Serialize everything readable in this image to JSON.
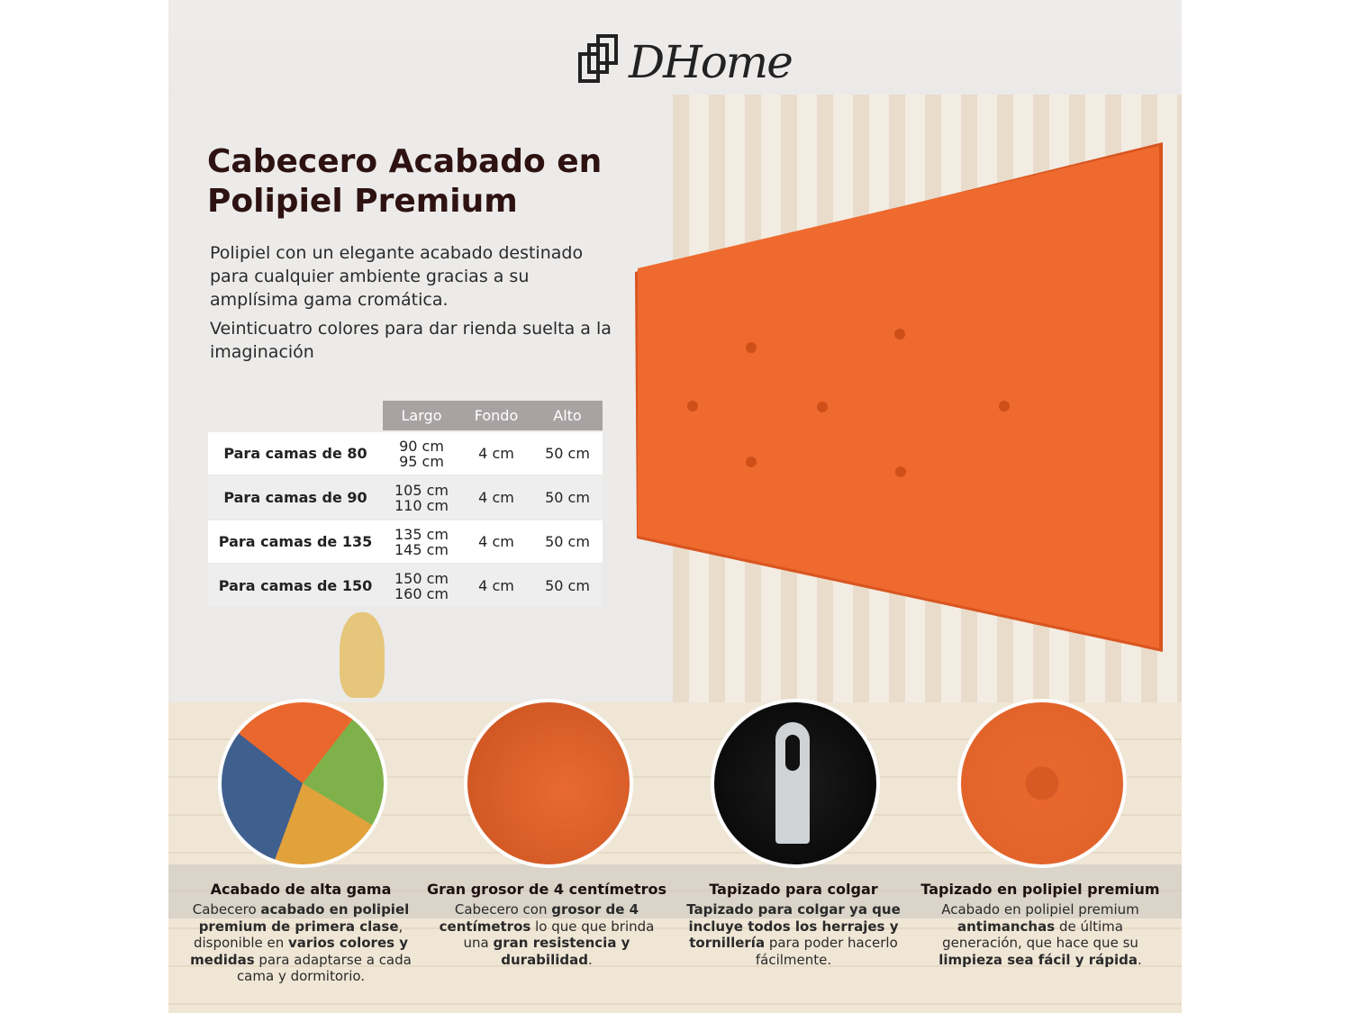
{
  "brand": {
    "name": "DHome"
  },
  "title": "Cabecero Acabado en Polipiel Premium",
  "intro": [
    "Polipiel con un elegante acabado destinado para cualquier ambiente gracias a su amplísima gama cromática.",
    "Veinticuatro colores para dar rienda suelta a la imaginación"
  ],
  "colors": {
    "headboard": "#ee6a2f",
    "title": "#2e1212",
    "table_header": "#a9a2a3"
  },
  "table": {
    "headers": [
      "Largo",
      "Fondo",
      "Alto"
    ],
    "rows": [
      {
        "label": "Para camas de 80",
        "largo": [
          "90 cm",
          "95 cm"
        ],
        "fondo": "4 cm",
        "alto": "50 cm"
      },
      {
        "label": "Para camas de 90",
        "largo": [
          "105 cm",
          "110 cm"
        ],
        "fondo": "4 cm",
        "alto": "50 cm"
      },
      {
        "label": "Para camas de 135",
        "largo": [
          "135 cm",
          "145 cm"
        ],
        "fondo": "4 cm",
        "alto": "50 cm"
      },
      {
        "label": "Para camas de 150",
        "largo": [
          "150 cm",
          "160 cm"
        ],
        "fondo": "4 cm",
        "alto": "50 cm"
      }
    ]
  },
  "features": [
    {
      "icon": "color-swatches-icon",
      "title": "Acabado de alta gama",
      "desc": [
        [
          "Cabecero ",
          0
        ],
        [
          "acabado en polipiel premium de primera clase",
          1
        ],
        [
          ", disponible en ",
          0
        ],
        [
          "varios colores y medidas",
          1
        ],
        [
          " para adaptarse a cada cama y dormitorio.",
          0
        ]
      ]
    },
    {
      "icon": "headboard-edge-icon",
      "title": "Gran grosor de 4 centímetros",
      "desc": [
        [
          "Cabecero con ",
          0
        ],
        [
          "grosor de 4 centímetros",
          1
        ],
        [
          " lo que que brinda una ",
          0
        ],
        [
          "gran resistencia y durabilidad",
          1
        ],
        [
          ".",
          0
        ]
      ]
    },
    {
      "icon": "hanging-bracket-icon",
      "title": "Tapizado para colgar",
      "desc": [
        [
          "Tapizado para colgar ya que incluye todos los herrajes y tornillería",
          1
        ],
        [
          " para poder hacerlo fácilmente.",
          0
        ]
      ]
    },
    {
      "icon": "button-tufting-icon",
      "title": "Tapizado en polipiel premium",
      "desc": [
        [
          "Acabado en polipiel premium ",
          0
        ],
        [
          "antimanchas",
          1
        ],
        [
          " de última generación, que hace que su ",
          0
        ],
        [
          "limpieza sea fácil y rápida",
          1
        ],
        [
          ".",
          0
        ]
      ]
    }
  ]
}
